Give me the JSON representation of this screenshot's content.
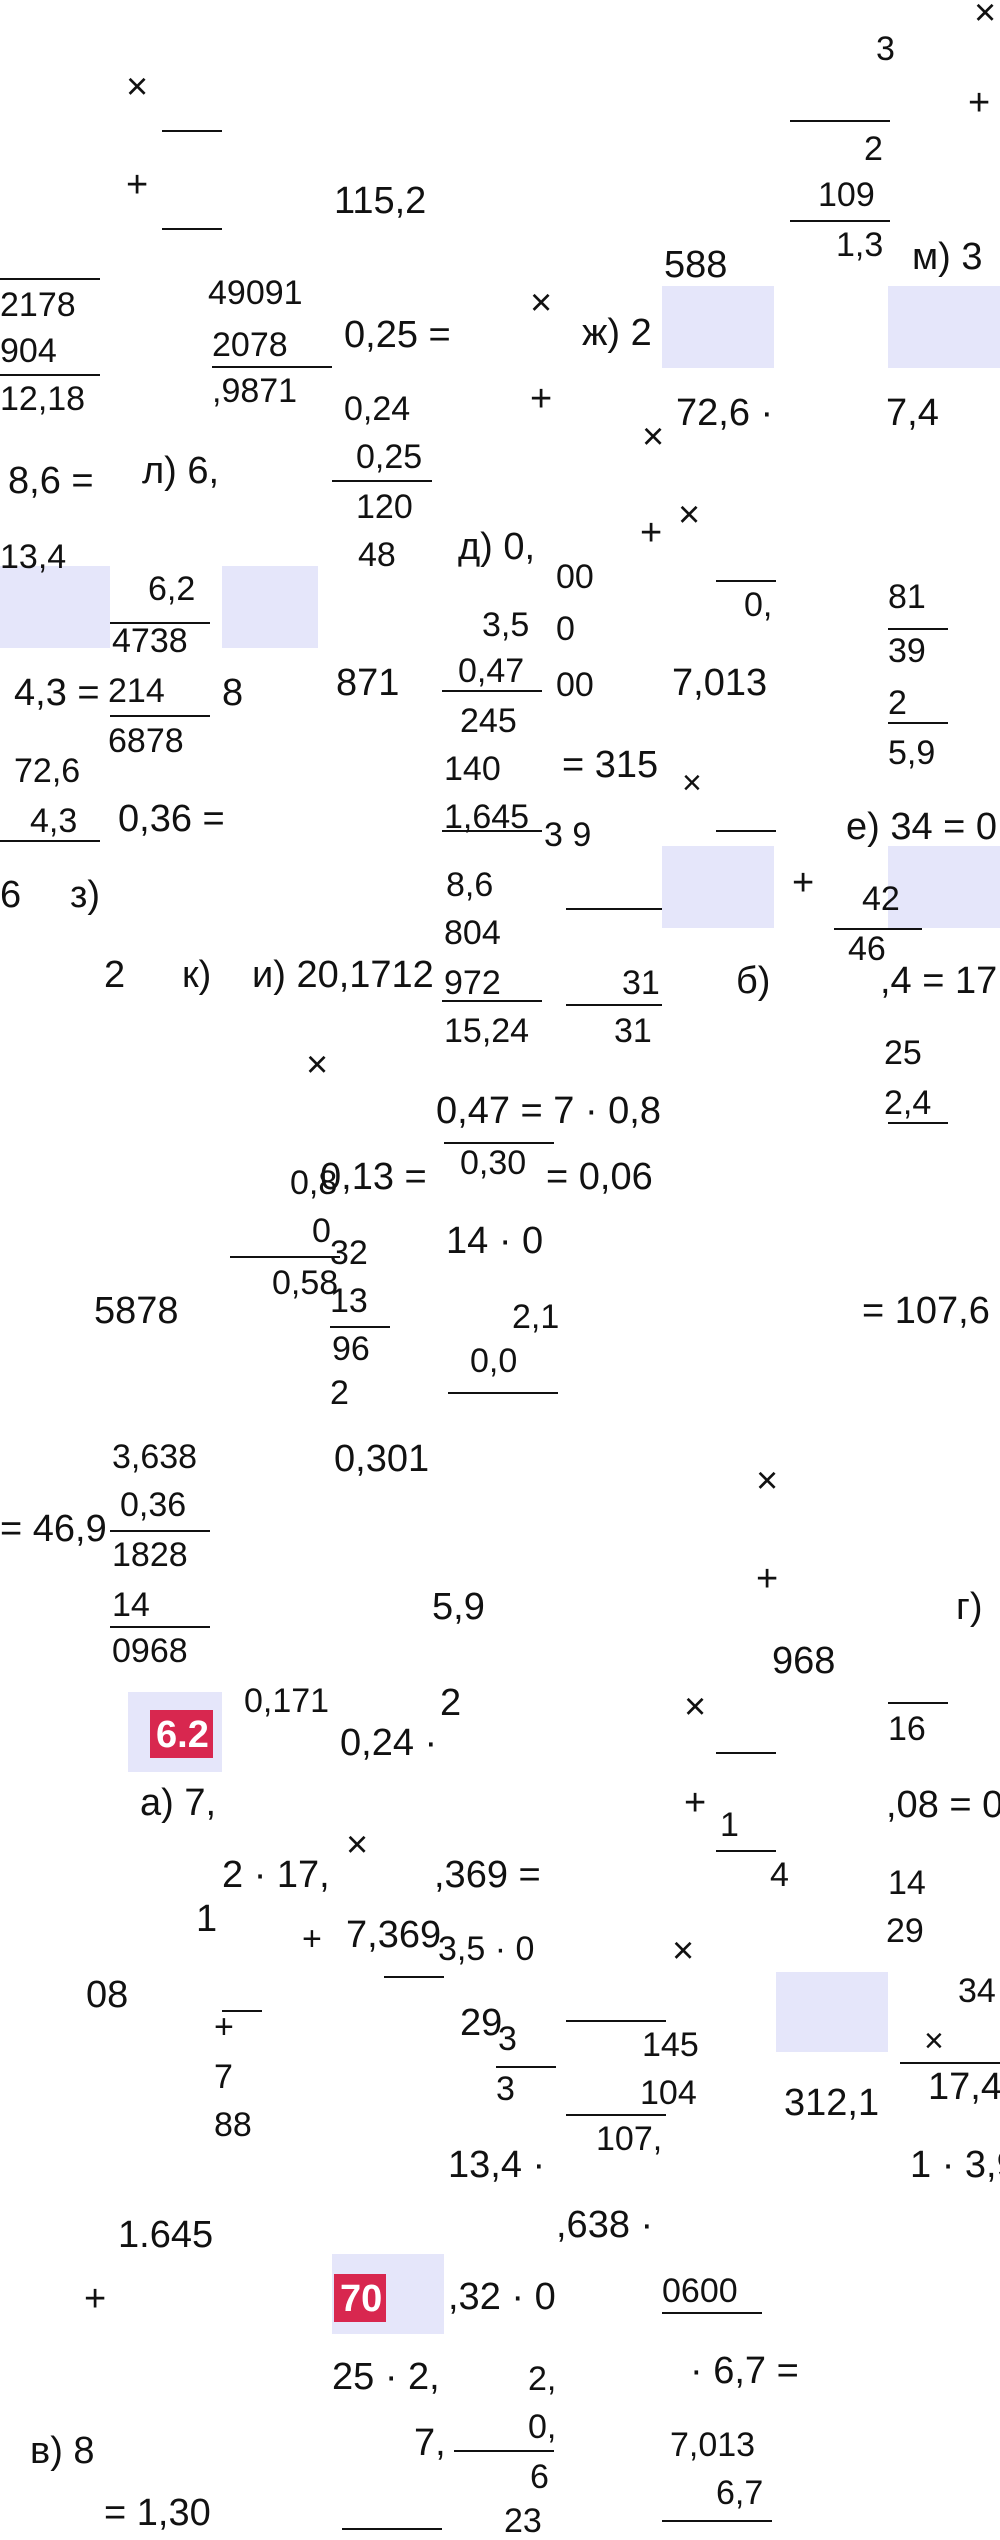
{
  "badges": [
    "6.2",
    "70"
  ],
  "fragments": [
    "3",
    "×",
    "×",
    "+",
    "+",
    "2",
    "109",
    "1,3",
    "115,2",
    "м) 3",
    "588",
    "2178",
    "49091",
    "904",
    "2078",
    "0,25 =",
    "×",
    "ж) 2",
    "12,18",
    ",9871",
    "0,24",
    "+",
    "×",
    "72,6 ·",
    "7,4",
    "8,6 =",
    "л) 6,",
    "0,25",
    "120",
    "×",
    "+",
    "д) 0,",
    "00",
    "48",
    "13,4",
    "6,2",
    "0,",
    "0",
    "3,5",
    "81",
    "4738",
    "00",
    "39",
    "4,3 =",
    "214",
    "8",
    "871",
    "0,47",
    "7,013",
    "2",
    "245",
    "6878",
    "5,9",
    "72,6",
    "140",
    "= 315",
    "×",
    "4,3",
    "0,36 =",
    "1,645",
    "3 9",
    "е) 34 = 0,",
    "8,6",
    "6",
    "з)",
    "+",
    "42",
    "804",
    "46",
    "2",
    "к)",
    "и) 20,1712",
    "972",
    "31",
    "б)",
    ",4 = 17",
    "15,24",
    "31",
    "×",
    "25",
    "2,4",
    "0,47 = 7 · 0,8",
    "0,8",
    "0,13 =",
    "0,30",
    "= 0,06",
    "0",
    "32",
    "14 · 0",
    "0,58",
    "5878",
    "13",
    "2,1",
    "= 107,6",
    "96",
    "0,0",
    "2",
    "3,638",
    "0,301",
    "0,36",
    "= 46,9",
    "×",
    "1828",
    "14",
    "5,9",
    "+",
    "г)",
    "0968",
    "968",
    "0,171",
    "2",
    "×",
    "16",
    "0,24 ·",
    "а) 7,",
    "+",
    "1",
    ",08 = 0",
    "2 · 17,",
    ",369 =",
    "×",
    "4",
    "14",
    "1",
    "+",
    "7,369",
    "3,5 · 0",
    "×",
    "08",
    "29",
    "34",
    "+",
    "29",
    "3",
    "145",
    "×",
    "312,1",
    "17,4",
    "7",
    "3",
    "104",
    "88",
    "13,4 ·",
    "107,",
    "1 · 3,9",
    "1.645",
    ",638 ·",
    "+",
    ",32 · 0",
    "0600",
    "25 · 2,",
    "2,",
    "· 6,7 =",
    "в) 8",
    "7,",
    "0,",
    "7,013",
    "6",
    "6,7",
    "= 1,30",
    "23"
  ]
}
